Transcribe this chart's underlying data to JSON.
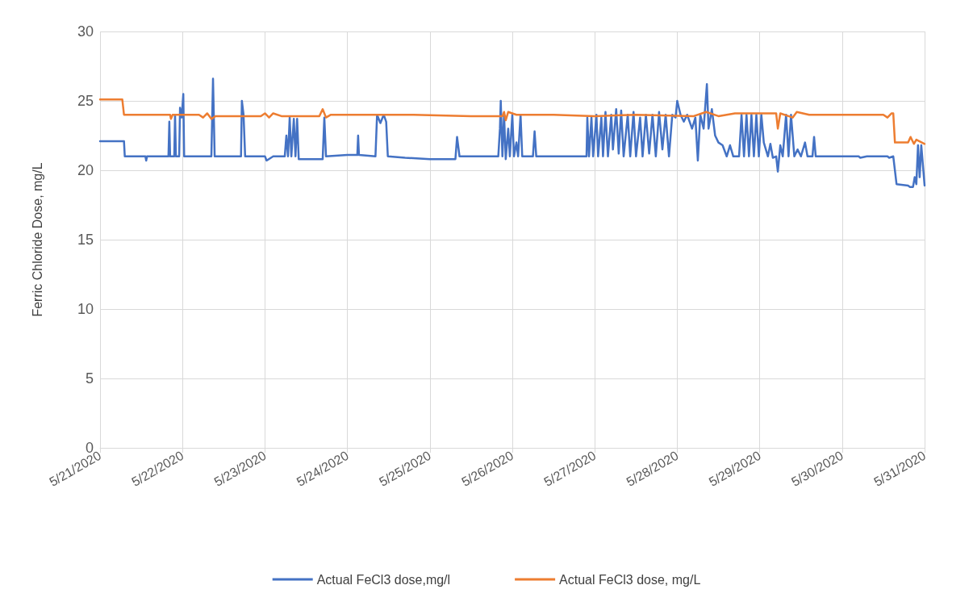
{
  "chart_data": {
    "type": "line",
    "ylabel": "Ferric Chloride Dose, mg/L",
    "xlim": [
      "2020-05-21",
      "2020-05-31"
    ],
    "xticks": [
      {
        "value": "2020-05-21",
        "label": "5/21/2020"
      },
      {
        "value": "2020-05-22",
        "label": "5/22/2020"
      },
      {
        "value": "2020-05-23",
        "label": "5/23/2020"
      },
      {
        "value": "2020-05-24",
        "label": "5/24/2020"
      },
      {
        "value": "2020-05-25",
        "label": "5/25/2020"
      },
      {
        "value": "2020-05-26",
        "label": "5/26/2020"
      },
      {
        "value": "2020-05-27",
        "label": "5/27/2020"
      },
      {
        "value": "2020-05-28",
        "label": "5/28/2020"
      },
      {
        "value": "2020-05-29",
        "label": "5/29/2020"
      },
      {
        "value": "2020-05-30",
        "label": "5/30/2020"
      },
      {
        "value": "2020-05-31",
        "label": "5/31/2020"
      }
    ],
    "ylim": [
      0,
      30
    ],
    "yticks": [
      0,
      5,
      10,
      15,
      20,
      25,
      30
    ],
    "grid": true,
    "legend": "bottom",
    "marker": "none",
    "line_style": "solid",
    "series": [
      {
        "name": "Actual FeCl3 dose,mg/l",
        "color": "#4472c4",
        "x": [
          "2020-05-21T00:00",
          "2020-05-21T06:58",
          "2020-05-21T07:12",
          "2020-05-21T13:12",
          "2020-05-21T13:26",
          "2020-05-21T13:41",
          "2020-05-21T19:55",
          "2020-05-21T20:10",
          "2020-05-21T20:24",
          "2020-05-21T21:36",
          "2020-05-21T21:50",
          "2020-05-21T22:05",
          "2020-05-21T23:02",
          "2020-05-21T23:17",
          "2020-05-21T23:46",
          "2020-05-22T00:14",
          "2020-05-22T00:29",
          "2020-05-22T08:24",
          "2020-05-22T08:53",
          "2020-05-22T09:22",
          "2020-05-22T17:02",
          "2020-05-22T17:17",
          "2020-05-22T17:46",
          "2020-05-22T18:14",
          "2020-05-23T00:00",
          "2020-05-23T00:29",
          "2020-05-23T02:24",
          "2020-05-23T05:46",
          "2020-05-23T06:14",
          "2020-05-23T06:43",
          "2020-05-23T07:12",
          "2020-05-23T07:41",
          "2020-05-23T08:24",
          "2020-05-23T08:53",
          "2020-05-23T09:22",
          "2020-05-23T09:50",
          "2020-05-23T16:48",
          "2020-05-23T17:17",
          "2020-05-23T17:46",
          "2020-05-24T00:00",
          "2020-05-24T02:53",
          "2020-05-24T03:07",
          "2020-05-24T03:22",
          "2020-05-24T08:10",
          "2020-05-24T08:38",
          "2020-05-24T09:36",
          "2020-05-24T10:34",
          "2020-05-24T11:17",
          "2020-05-24T11:46",
          "2020-05-24T16:48",
          "2020-05-25T00:00",
          "2020-05-25T07:26",
          "2020-05-25T07:55",
          "2020-05-25T08:38",
          "2020-05-25T19:55",
          "2020-05-25T20:24",
          "2020-05-25T20:38",
          "2020-05-25T21:07",
          "2020-05-25T21:36",
          "2020-05-25T22:05",
          "2020-05-25T22:48",
          "2020-05-25T23:17",
          "2020-05-26T00:00",
          "2020-05-26T00:29",
          "2020-05-26T01:12",
          "2020-05-26T01:41",
          "2020-05-26T02:24",
          "2020-05-26T02:53",
          "2020-05-26T06:00",
          "2020-05-26T06:29",
          "2020-05-26T06:58",
          "2020-05-26T21:36",
          "2020-05-26T21:50",
          "2020-05-26T22:19",
          "2020-05-26T23:02",
          "2020-05-26T23:31",
          "2020-05-27T00:29",
          "2020-05-27T00:58",
          "2020-05-27T01:55",
          "2020-05-27T02:24",
          "2020-05-27T03:07",
          "2020-05-27T03:50",
          "2020-05-27T04:48",
          "2020-05-27T05:17",
          "2020-05-27T06:14",
          "2020-05-27T06:58",
          "2020-05-27T07:41",
          "2020-05-27T08:24",
          "2020-05-27T09:36",
          "2020-05-27T10:19",
          "2020-05-27T11:17",
          "2020-05-27T12:00",
          "2020-05-27T13:12",
          "2020-05-27T13:55",
          "2020-05-27T14:53",
          "2020-05-27T15:50",
          "2020-05-27T16:48",
          "2020-05-27T17:46",
          "2020-05-27T18:43",
          "2020-05-27T19:41",
          "2020-05-27T20:38",
          "2020-05-27T21:36",
          "2020-05-27T22:34",
          "2020-05-27T23:31",
          "2020-05-28T00:00",
          "2020-05-28T00:58",
          "2020-05-28T01:55",
          "2020-05-28T02:53",
          "2020-05-28T04:19",
          "2020-05-28T05:17",
          "2020-05-28T06:00",
          "2020-05-28T06:43",
          "2020-05-28T07:41",
          "2020-05-28T08:38",
          "2020-05-28T09:07",
          "2020-05-28T10:05",
          "2020-05-28T11:02",
          "2020-05-28T12:00",
          "2020-05-28T13:12",
          "2020-05-28T14:24",
          "2020-05-28T15:22",
          "2020-05-28T16:19",
          "2020-05-28T18:00",
          "2020-05-28T18:43",
          "2020-05-28T19:26",
          "2020-05-28T20:10",
          "2020-05-28T20:53",
          "2020-05-28T21:36",
          "2020-05-28T22:19",
          "2020-05-28T23:02",
          "2020-05-28T23:46",
          "2020-05-29T00:29",
          "2020-05-29T01:12",
          "2020-05-29T02:24",
          "2020-05-29T03:07",
          "2020-05-29T03:50",
          "2020-05-29T04:48",
          "2020-05-29T05:17",
          "2020-05-29T06:00",
          "2020-05-29T06:43",
          "2020-05-29T07:41",
          "2020-05-29T08:24",
          "2020-05-29T09:07",
          "2020-05-29T10:05",
          "2020-05-29T11:02",
          "2020-05-29T12:00",
          "2020-05-29T13:12",
          "2020-05-29T13:55",
          "2020-05-29T15:22",
          "2020-05-29T15:50",
          "2020-05-29T16:19",
          "2020-05-30T04:48",
          "2020-05-30T05:17",
          "2020-05-30T07:12",
          "2020-05-30T13:12",
          "2020-05-30T13:41",
          "2020-05-30T14:53",
          "2020-05-30T15:50",
          "2020-05-30T19:12",
          "2020-05-30T19:41",
          "2020-05-30T20:38",
          "2020-05-30T21:07",
          "2020-05-30T21:36",
          "2020-05-30T22:05",
          "2020-05-30T22:34",
          "2020-05-30T23:02",
          "2020-05-31T00:00"
        ],
        "values": [
          22.1,
          22.1,
          21.0,
          21.0,
          20.7,
          21.0,
          21.0,
          23.5,
          21.0,
          21.0,
          24.0,
          21.0,
          21.0,
          24.5,
          23.8,
          25.5,
          21.0,
          21.0,
          26.6,
          21.0,
          21.0,
          25.0,
          24.0,
          21.0,
          21.0,
          20.7,
          21.0,
          21.0,
          22.5,
          21.0,
          23.8,
          21.0,
          23.7,
          21.0,
          23.7,
          20.8,
          20.8,
          23.8,
          21.0,
          21.1,
          21.1,
          22.5,
          21.1,
          21.0,
          24.0,
          23.4,
          24.0,
          23.5,
          21.0,
          20.9,
          20.8,
          20.8,
          22.4,
          21.0,
          21.0,
          23.0,
          25.0,
          21.0,
          24.0,
          20.8,
          23.0,
          21.0,
          24.0,
          21.0,
          22.0,
          21.0,
          24.0,
          21.0,
          21.0,
          22.8,
          21.0,
          21.0,
          23.8,
          21.0,
          23.8,
          21.0,
          24.0,
          21.0,
          23.8,
          21.0,
          24.2,
          21.0,
          24.0,
          21.5,
          24.4,
          21.2,
          24.3,
          21.0,
          24.0,
          21.0,
          24.2,
          21.0,
          23.8,
          21.0,
          24.0,
          21.2,
          24.0,
          21.0,
          24.2,
          21.5,
          24.0,
          21.0,
          24.0,
          23.8,
          25.0,
          24.0,
          23.5,
          24.0,
          23.0,
          23.8,
          20.7,
          24.0,
          23.0,
          26.2,
          23.0,
          24.4,
          22.5,
          22.0,
          21.8,
          21.0,
          21.8,
          21.0,
          21.0,
          24.0,
          21.0,
          24.0,
          21.0,
          24.0,
          21.0,
          24.0,
          21.0,
          24.0,
          22.0,
          21.0,
          21.9,
          20.9,
          21.0,
          19.9,
          21.8,
          21.0,
          24.0,
          21.0,
          24.0,
          21.0,
          21.5,
          21.0,
          22.0,
          21.0,
          21.0,
          22.4,
          21.0,
          21.0,
          20.9,
          21.0,
          21.0,
          20.9,
          21.0,
          19.0,
          18.9,
          18.8,
          18.8,
          19.5,
          19.0,
          21.8,
          19.5,
          21.8,
          18.9
        ]
      },
      {
        "name": "Actual FeCl3 dose, mg/L",
        "color": "#ed7d31",
        "x": [
          "2020-05-21T00:00",
          "2020-05-21T06:29",
          "2020-05-21T06:58",
          "2020-05-21T20:24",
          "2020-05-21T20:38",
          "2020-05-21T21:07",
          "2020-05-22T04:48",
          "2020-05-22T06:00",
          "2020-05-22T07:12",
          "2020-05-22T08:24",
          "2020-05-22T09:36",
          "2020-05-22T22:48",
          "2020-05-23T00:00",
          "2020-05-23T01:12",
          "2020-05-23T02:24",
          "2020-05-23T04:48",
          "2020-05-23T15:50",
          "2020-05-23T16:48",
          "2020-05-23T17:46",
          "2020-05-23T19:12",
          "2020-05-24T19:12",
          "2020-05-25T12:00",
          "2020-05-25T21:07",
          "2020-05-25T21:36",
          "2020-05-25T22:05",
          "2020-05-25T22:48",
          "2020-05-26T01:12",
          "2020-05-26T12:00",
          "2020-05-27T00:00",
          "2020-05-27T12:00",
          "2020-05-28T04:48",
          "2020-05-28T08:24",
          "2020-05-28T12:00",
          "2020-05-28T16:48",
          "2020-05-29T04:48",
          "2020-05-29T05:17",
          "2020-05-29T06:00",
          "2020-05-29T09:36",
          "2020-05-29T10:48",
          "2020-05-29T14:24",
          "2020-05-30T12:00",
          "2020-05-30T13:12",
          "2020-05-30T14:24",
          "2020-05-30T14:53",
          "2020-05-30T15:22",
          "2020-05-30T19:12",
          "2020-05-30T19:55",
          "2020-05-30T20:53",
          "2020-05-30T21:36",
          "2020-05-31T00:00"
        ],
        "values": [
          25.1,
          25.1,
          24.0,
          24.0,
          23.7,
          24.0,
          24.0,
          23.8,
          24.1,
          23.7,
          23.9,
          23.9,
          24.1,
          23.8,
          24.1,
          23.9,
          23.9,
          24.4,
          23.8,
          24.0,
          24.0,
          23.9,
          23.9,
          24.2,
          23.6,
          24.2,
          24.0,
          24.0,
          23.9,
          24.0,
          23.9,
          24.2,
          23.9,
          24.1,
          24.1,
          23.0,
          24.1,
          23.8,
          24.2,
          24.0,
          24.0,
          23.8,
          24.1,
          24.1,
          22.0,
          22.0,
          22.4,
          21.9,
          22.2,
          21.9
        ]
      }
    ]
  }
}
